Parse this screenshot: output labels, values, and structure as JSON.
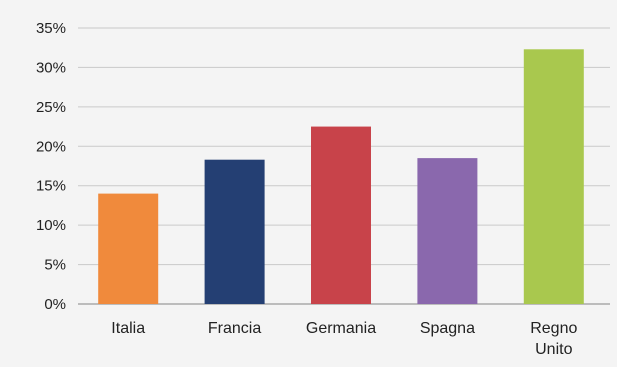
{
  "chart_data": {
    "type": "bar",
    "title": "",
    "xlabel": "",
    "ylabel": "",
    "ylim": [
      0,
      35
    ],
    "y_ticks": [
      0,
      5,
      10,
      15,
      20,
      25,
      30,
      35
    ],
    "y_tick_labels": [
      "0%",
      "5%",
      "10%",
      "15%",
      "20%",
      "25%",
      "30%",
      "35%"
    ],
    "grid": true,
    "categories": [
      {
        "label_lines": [
          "Italia"
        ],
        "value": 14,
        "color": "#f08a3c"
      },
      {
        "label_lines": [
          "Francia"
        ],
        "value": 18.3,
        "color": "#243f73"
      },
      {
        "label_lines": [
          "Germania"
        ],
        "value": 22.5,
        "color": "#c8434a"
      },
      {
        "label_lines": [
          "Spagna"
        ],
        "value": 18.5,
        "color": "#8a68ad"
      },
      {
        "label_lines": [
          "Regno",
          "Unito"
        ],
        "value": 32.3,
        "color": "#a9c84e"
      }
    ]
  }
}
